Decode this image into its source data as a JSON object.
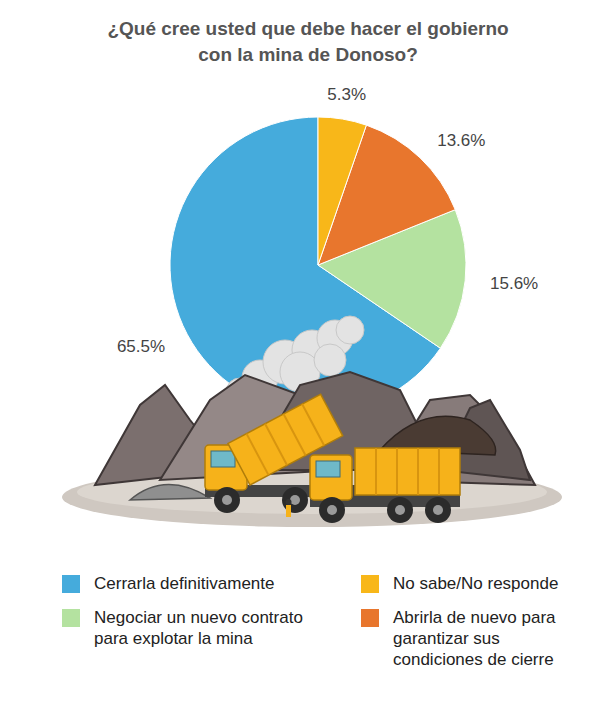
{
  "chart_data": {
    "type": "pie",
    "title": "¿Qué cree usted que debe hacer el gobierno con la mina de Donoso?",
    "categories": [
      "Cerrarla definitivamente",
      "Negociar un nuevo contrato para explotar la mina",
      "Abrirla de nuevo para garantizar sus condiciones de cierre",
      "No sabe/No responde"
    ],
    "values": [
      65.5,
      15.6,
      13.6,
      5.3
    ],
    "value_labels": [
      "65.5%",
      "15.6%",
      "13.6%",
      "5.3%"
    ],
    "colors": [
      "#45ABDC",
      "#B4E2A0",
      "#E8762D",
      "#F8B719"
    ],
    "data_labels": true,
    "legend": "bottom"
  }
}
